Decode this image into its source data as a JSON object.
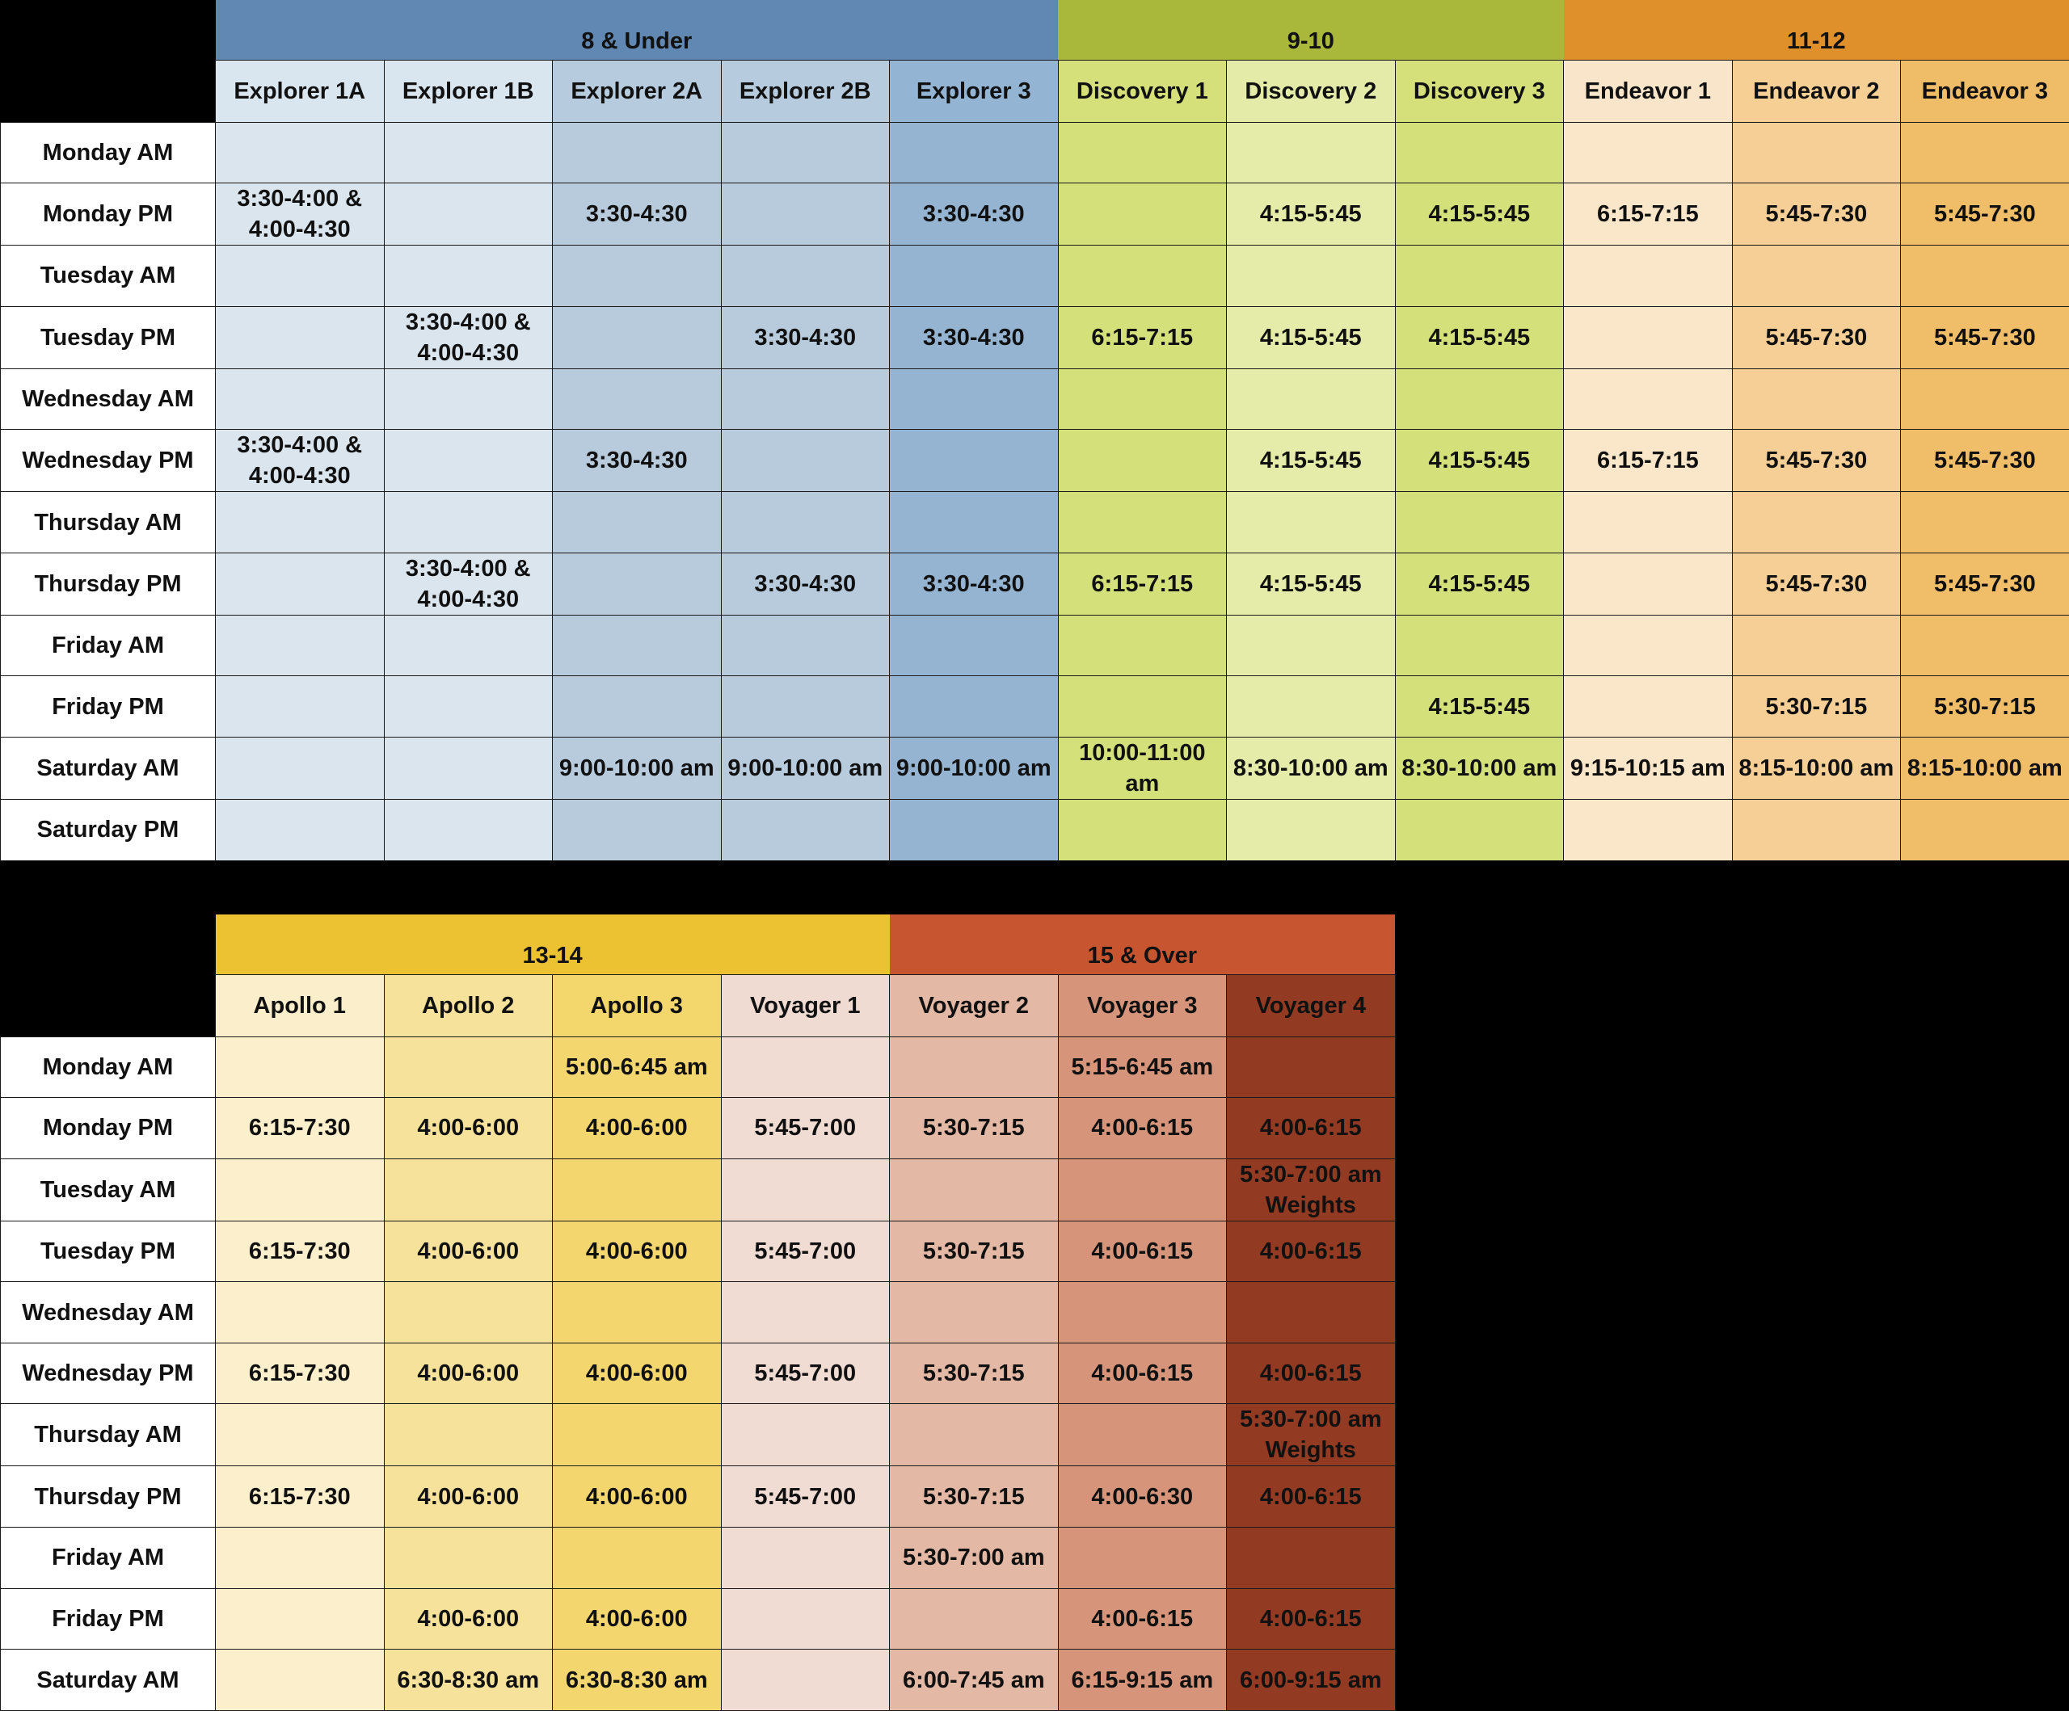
{
  "tables": [
    {
      "groups": [
        {
          "label": "8 & Under",
          "span": 5,
          "color": "#6088b2"
        },
        {
          "label": "9-10",
          "span": 3,
          "color": "#a9b83a"
        },
        {
          "label": "11-12",
          "span": 3,
          "color": "#e0902a"
        }
      ],
      "teams": [
        {
          "label": "Explorer 1A",
          "head": "#d9e5ef",
          "body": "#dbe5ee"
        },
        {
          "label": "Explorer 1B",
          "head": "#d9e5ef",
          "body": "#dbe5ee"
        },
        {
          "label": "Explorer 2A",
          "head": "#b6cbdd",
          "body": "#b8cbdc"
        },
        {
          "label": "Explorer 2B",
          "head": "#b6cbdd",
          "body": "#b8cbdc"
        },
        {
          "label": "Explorer 3",
          "head": "#93b4d3",
          "body": "#94b4d2"
        },
        {
          "label": "Discovery 1",
          "head": "#d5e07a",
          "body": "#d4e07a"
        },
        {
          "label": "Discovery 2",
          "head": "#e4eba8",
          "body": "#e5eba8"
        },
        {
          "label": "Discovery 3",
          "head": "#d5e07a",
          "body": "#d4e07a"
        },
        {
          "label": "Endeavor 1",
          "head": "#f9e6ca",
          "body": "#fae6c9"
        },
        {
          "label": "Endeavor 2",
          "head": "#f5cf94",
          "body": "#f5cf95"
        },
        {
          "label": "Endeavor 3",
          "head": "#efbd67",
          "body": "#f0be68"
        }
      ],
      "rows": [
        {
          "day": "Monday AM",
          "cells": [
            "",
            "",
            "",
            "",
            "",
            "",
            "",
            "",
            "",
            "",
            ""
          ]
        },
        {
          "day": "Monday PM",
          "cells": [
            "3:30-4:00 & 4:00-4:30",
            "",
            "3:30-4:30",
            "",
            "3:30-4:30",
            "",
            "4:15-5:45",
            "4:15-5:45",
            "6:15-7:15",
            "5:45-7:30",
            "5:45-7:30"
          ]
        },
        {
          "day": "Tuesday AM",
          "cells": [
            "",
            "",
            "",
            "",
            "",
            "",
            "",
            "",
            "",
            "",
            ""
          ]
        },
        {
          "day": "Tuesday PM",
          "cells": [
            "",
            "3:30-4:00 & 4:00-4:30",
            "",
            "3:30-4:30",
            "3:30-4:30",
            "6:15-7:15",
            "4:15-5:45",
            "4:15-5:45",
            "",
            "5:45-7:30",
            "5:45-7:30"
          ]
        },
        {
          "day": "Wednesday AM",
          "cells": [
            "",
            "",
            "",
            "",
            "",
            "",
            "",
            "",
            "",
            "",
            ""
          ]
        },
        {
          "day": "Wednesday PM",
          "cells": [
            "3:30-4:00 & 4:00-4:30",
            "",
            "3:30-4:30",
            "",
            "",
            "",
            "4:15-5:45",
            "4:15-5:45",
            "6:15-7:15",
            "5:45-7:30",
            "5:45-7:30"
          ]
        },
        {
          "day": "Thursday AM",
          "cells": [
            "",
            "",
            "",
            "",
            "",
            "",
            "",
            "",
            "",
            "",
            ""
          ]
        },
        {
          "day": "Thursday PM",
          "cells": [
            "",
            "3:30-4:00 & 4:00-4:30",
            "",
            "3:30-4:30",
            "3:30-4:30",
            "6:15-7:15",
            "4:15-5:45",
            "4:15-5:45",
            "",
            "5:45-7:30",
            "5:45-7:30"
          ]
        },
        {
          "day": "Friday AM",
          "cells": [
            "",
            "",
            "",
            "",
            "",
            "",
            "",
            "",
            "",
            "",
            ""
          ]
        },
        {
          "day": "Friday PM",
          "cells": [
            "",
            "",
            "",
            "",
            "",
            "",
            "",
            "4:15-5:45",
            "",
            "5:30-7:15",
            "5:30-7:15"
          ]
        },
        {
          "day": "Saturday AM",
          "cells": [
            "",
            "",
            "9:00-10:00 am",
            "9:00-10:00 am",
            "9:00-10:00 am",
            "10:00-11:00 am",
            "8:30-10:00 am",
            "8:30-10:00 am",
            "9:15-10:15 am",
            "8:15-10:00 am",
            "8:15-10:00 am"
          ]
        },
        {
          "day": "Saturday PM",
          "cells": [
            "",
            "",
            "",
            "",
            "",
            "",
            "",
            "",
            "",
            "",
            ""
          ]
        }
      ]
    },
    {
      "groups": [
        {
          "label": "13-14",
          "span": 4,
          "color": "#ecc233"
        },
        {
          "label": "15 & Over",
          "span": 3,
          "color": "#c65530"
        }
      ],
      "teams": [
        {
          "label": "Apollo 1",
          "head": "#fbeecb",
          "body": "#fbefcc"
        },
        {
          "label": "Apollo 2",
          "head": "#f6e29a",
          "body": "#f6e29b"
        },
        {
          "label": "Apollo 3",
          "head": "#f3d66c",
          "body": "#f3d66d"
        },
        {
          "label": "Voyager 1",
          "head": "#f0dbd2",
          "body": "#f0dcd3"
        },
        {
          "label": "Voyager 2",
          "head": "#e3b9a6",
          "body": "#e3b8a5"
        },
        {
          "label": "Voyager 3",
          "head": "#d6957b",
          "body": "#d6957b"
        },
        {
          "label": "Voyager 4",
          "head": "#933b22",
          "body": "#923b22"
        }
      ],
      "rows": [
        {
          "day": "Monday AM",
          "cells": [
            "",
            "",
            "5:00-6:45 am",
            "",
            "",
            "5:15-6:45 am",
            ""
          ]
        },
        {
          "day": "Monday PM",
          "cells": [
            "6:15-7:30",
            "4:00-6:00",
            "4:00-6:00",
            "5:45-7:00",
            "5:30-7:15",
            "4:00-6:15",
            "4:00-6:15"
          ]
        },
        {
          "day": "Tuesday AM",
          "cells": [
            "",
            "",
            "",
            "",
            "",
            "",
            "5:30-7:00 am Weights"
          ]
        },
        {
          "day": "Tuesday PM",
          "cells": [
            "6:15-7:30",
            "4:00-6:00",
            "4:00-6:00",
            "5:45-7:00",
            "5:30-7:15",
            "4:00-6:15",
            "4:00-6:15"
          ]
        },
        {
          "day": "Wednesday AM",
          "cells": [
            "",
            "",
            "",
            "",
            "",
            "",
            ""
          ]
        },
        {
          "day": "Wednesday PM",
          "cells": [
            "6:15-7:30",
            "4:00-6:00",
            "4:00-6:00",
            "5:45-7:00",
            "5:30-7:15",
            "4:00-6:15",
            "4:00-6:15"
          ]
        },
        {
          "day": "Thursday AM",
          "cells": [
            "",
            "",
            "",
            "",
            "",
            "",
            "5:30-7:00 am Weights"
          ]
        },
        {
          "day": "Thursday PM",
          "cells": [
            "6:15-7:30",
            "4:00-6:00",
            "4:00-6:00",
            "5:45-7:00",
            "5:30-7:15",
            "4:00-6:30",
            "4:00-6:15"
          ]
        },
        {
          "day": "Friday AM",
          "cells": [
            "",
            "",
            "",
            "",
            "5:30-7:00 am",
            "",
            ""
          ]
        },
        {
          "day": "Friday PM",
          "cells": [
            "",
            "4:00-6:00",
            "4:00-6:00",
            "",
            "",
            "4:00-6:15",
            "4:00-6:15"
          ]
        },
        {
          "day": "Saturday AM",
          "cells": [
            "",
            "6:30-8:30 am",
            "6:30-8:30 am",
            "",
            "6:00-7:45 am",
            "6:15-9:15 am",
            "6:00-9:15 am"
          ]
        }
      ]
    }
  ]
}
